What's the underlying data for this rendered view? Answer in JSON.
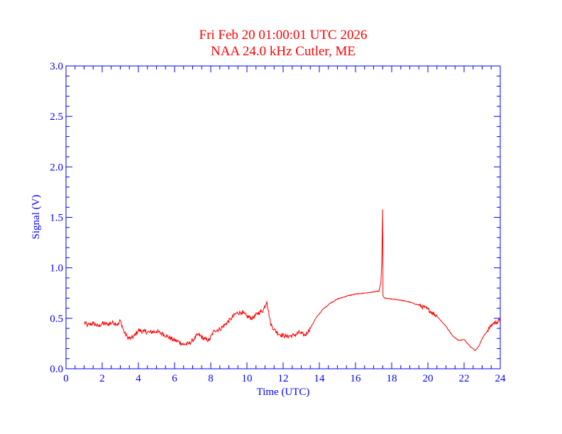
{
  "chart_data": {
    "type": "line",
    "title": "Fri Feb 20 01:00:01 UTC 2026",
    "subtitle": "NAA 24.0 kHz Cutler, ME",
    "xlabel": "Time (UTC)",
    "ylabel": "Signal (V)",
    "xlim": [
      0,
      24
    ],
    "ylim": [
      0,
      3.0
    ],
    "xticks": [
      "0",
      "2",
      "4",
      "6",
      "8",
      "10",
      "12",
      "14",
      "16",
      "18",
      "20",
      "22",
      "24"
    ],
    "yticks": [
      "0.0",
      "0.5",
      "1.0",
      "1.5",
      "2.0",
      "2.5",
      "3.0"
    ],
    "grid": false,
    "colors": {
      "axes": "#0000ff",
      "series": "#ff0000",
      "title": "#ff0000"
    },
    "series": [
      {
        "values": [
          [
            1.0,
            0.46
          ],
          [
            1.2,
            0.43
          ],
          [
            1.5,
            0.45
          ],
          [
            1.8,
            0.42
          ],
          [
            2.0,
            0.45
          ],
          [
            2.3,
            0.44
          ],
          [
            2.6,
            0.46
          ],
          [
            2.9,
            0.44
          ],
          [
            3.0,
            0.48
          ],
          [
            3.2,
            0.37
          ],
          [
            3.4,
            0.31
          ],
          [
            3.6,
            0.3
          ],
          [
            3.8,
            0.33
          ],
          [
            4.0,
            0.38
          ],
          [
            4.3,
            0.37
          ],
          [
            4.6,
            0.36
          ],
          [
            5.0,
            0.37
          ],
          [
            5.3,
            0.35
          ],
          [
            5.6,
            0.32
          ],
          [
            5.9,
            0.29
          ],
          [
            6.2,
            0.27
          ],
          [
            6.5,
            0.24
          ],
          [
            6.8,
            0.25
          ],
          [
            7.0,
            0.28
          ],
          [
            7.3,
            0.34
          ],
          [
            7.6,
            0.3
          ],
          [
            7.9,
            0.28
          ],
          [
            8.2,
            0.38
          ],
          [
            8.5,
            0.39
          ],
          [
            8.8,
            0.44
          ],
          [
            9.1,
            0.49
          ],
          [
            9.4,
            0.55
          ],
          [
            9.7,
            0.56
          ],
          [
            10.0,
            0.52
          ],
          [
            10.3,
            0.5
          ],
          [
            10.6,
            0.55
          ],
          [
            10.9,
            0.58
          ],
          [
            11.1,
            0.67
          ],
          [
            11.3,
            0.45
          ],
          [
            11.5,
            0.39
          ],
          [
            11.8,
            0.34
          ],
          [
            12.2,
            0.32
          ],
          [
            12.6,
            0.33
          ],
          [
            12.9,
            0.36
          ],
          [
            13.2,
            0.33
          ],
          [
            13.5,
            0.4
          ],
          [
            13.8,
            0.5
          ],
          [
            14.2,
            0.59
          ],
          [
            14.6,
            0.65
          ],
          [
            15.0,
            0.69
          ],
          [
            15.5,
            0.72
          ],
          [
            16.0,
            0.74
          ],
          [
            16.5,
            0.75
          ],
          [
            17.0,
            0.76
          ],
          [
            17.3,
            0.77
          ],
          [
            17.4,
            0.85
          ],
          [
            17.45,
            1.05
          ],
          [
            17.5,
            1.58
          ],
          [
            17.52,
            0.72
          ],
          [
            17.6,
            0.7
          ],
          [
            18.0,
            0.69
          ],
          [
            18.5,
            0.68
          ],
          [
            19.0,
            0.66
          ],
          [
            19.5,
            0.63
          ],
          [
            20.0,
            0.59
          ],
          [
            20.5,
            0.52
          ],
          [
            21.0,
            0.42
          ],
          [
            21.4,
            0.32
          ],
          [
            21.7,
            0.28
          ],
          [
            22.0,
            0.29
          ],
          [
            22.3,
            0.23
          ],
          [
            22.6,
            0.18
          ],
          [
            22.8,
            0.22
          ],
          [
            23.0,
            0.3
          ],
          [
            23.3,
            0.38
          ],
          [
            23.6,
            0.45
          ],
          [
            23.8,
            0.46
          ],
          [
            24.0,
            0.48
          ]
        ]
      }
    ]
  }
}
